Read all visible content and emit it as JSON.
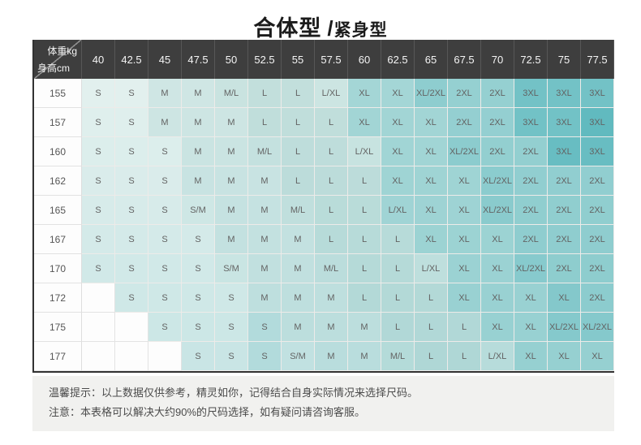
{
  "title": {
    "main": "合体型",
    "separator": "/",
    "sub": "紧身型"
  },
  "table": {
    "corner": {
      "top_right": "体重kg",
      "bottom_left": "身高cm"
    },
    "weight_columns": [
      "40",
      "42.5",
      "45",
      "47.5",
      "50",
      "52.5",
      "55",
      "57.5",
      "60",
      "62.5",
      "65",
      "67.5",
      "70",
      "72.5",
      "75",
      "77.5"
    ],
    "rows": [
      {
        "height": "155",
        "cells": [
          "S",
          "S",
          "M",
          "M",
          "M/L",
          "L",
          "L",
          "L/XL",
          "XL",
          "XL",
          "XL/2XL",
          "2XL",
          "2XL",
          "3XL",
          "3XL",
          "3XL"
        ]
      },
      {
        "height": "157",
        "cells": [
          "S",
          "S",
          "M",
          "M",
          "M",
          "L",
          "L",
          "L",
          "XL",
          "XL",
          "XL",
          "2XL",
          "2XL",
          "3XL",
          "3XL",
          "3XL"
        ]
      },
      {
        "height": "160",
        "cells": [
          "S",
          "S",
          "S",
          "M",
          "M",
          "M/L",
          "L",
          "L",
          "L/XL",
          "XL",
          "XL",
          "XL/2XL",
          "2XL",
          "2XL",
          "3XL",
          "3XL"
        ]
      },
      {
        "height": "162",
        "cells": [
          "S",
          "S",
          "S",
          "M",
          "M",
          "M",
          "L",
          "L",
          "L",
          "XL",
          "XL",
          "XL",
          "XL/2XL",
          "2XL",
          "2XL",
          "2XL"
        ]
      },
      {
        "height": "165",
        "cells": [
          "S",
          "S",
          "S",
          "S/M",
          "M",
          "M",
          "M/L",
          "L",
          "L",
          "L/XL",
          "XL",
          "XL",
          "XL/2XL",
          "2XL",
          "2XL",
          "2XL"
        ]
      },
      {
        "height": "167",
        "cells": [
          "S",
          "S",
          "S",
          "S",
          "M",
          "M",
          "M",
          "L",
          "L",
          "L",
          "XL",
          "XL",
          "XL",
          "2XL",
          "2XL",
          "2XL"
        ]
      },
      {
        "height": "170",
        "cells": [
          "S",
          "S",
          "S",
          "S",
          "S/M",
          "M",
          "M",
          "M/L",
          "L",
          "L",
          "L/XL",
          "XL",
          "XL",
          "XL/2XL",
          "2XL",
          "2XL"
        ]
      },
      {
        "height": "172",
        "cells": [
          "",
          "S",
          "S",
          "S",
          "S",
          "M",
          "M",
          "M",
          "L",
          "L",
          "L",
          "XL",
          "XL",
          "XL",
          "XL",
          "2XL"
        ]
      },
      {
        "height": "175",
        "cells": [
          "",
          "",
          "S",
          "S",
          "S",
          "S",
          "M",
          "M",
          "M",
          "L",
          "L",
          "L",
          "XL",
          "XL",
          "XL/2XL",
          "XL/2XL"
        ]
      },
      {
        "height": "177",
        "cells": [
          "",
          "",
          "",
          "S",
          "S",
          "S",
          "S/M",
          "M",
          "M",
          "M/L",
          "L",
          "L",
          "L/XL",
          "XL",
          "XL",
          "XL"
        ]
      }
    ]
  },
  "notes": [
    "温馨提示：以上数据仅供参考，精灵如你，记得结合自身实际情况来选择尺码。",
    "注意：本表格可以解决大约90%的尺码选择，如有疑问请咨询客服。"
  ],
  "colors": {
    "header_bg": "#3e3e3e",
    "header_text": "#f5f5f5",
    "cell_text": "#636363",
    "blank_cell": "#fdfdfd",
    "notes_bg": "#f1f1ef",
    "notes_text": "#4b4b4b",
    "row_darken_end": "#57b5bb",
    "row_darken_step": 0.02,
    "size_colors": {
      "S": "#e2f0ee",
      "S/M": "#d8ebe9",
      "M": "#cfe6e4",
      "M/L": "#c9e3e0",
      "L": "#c2dfdc",
      "L/XL": "#cce5e2",
      "XL": "#a4d6d6",
      "XL/2XL": "#8ecdcf",
      "2XL": "#95d0d1",
      "3XL": "#73c2c6"
    },
    "cell_overrides": [
      {
        "row": 1,
        "col": 15,
        "color": "#61babf"
      },
      {
        "row": 2,
        "col": 14,
        "color": "#68bdc2"
      },
      {
        "row": 2,
        "col": 15,
        "color": "#68bdc2"
      },
      {
        "row": 4,
        "col": 9,
        "color": "#a0d4d5"
      },
      {
        "row": 7,
        "col": 14,
        "color": "#84c8cb"
      },
      {
        "row": 8,
        "col": 5,
        "color": "#b2dbdc"
      },
      {
        "row": 9,
        "col": 5,
        "color": "#b2dbdc"
      }
    ]
  }
}
